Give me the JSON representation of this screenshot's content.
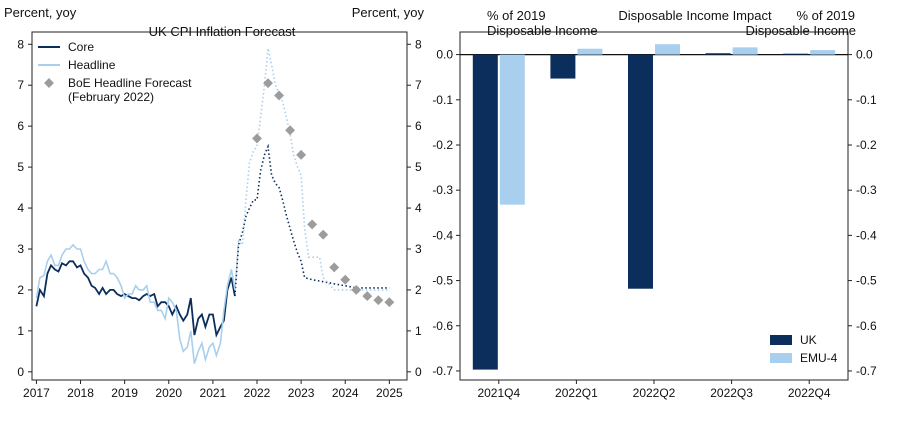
{
  "chart_data": [
    {
      "type": "line",
      "title": "UK CPI Inflation Forecast",
      "ylabel_left": "Percent, yoy",
      "ylabel_right": "Percent, yoy",
      "ylim": [
        -0.2,
        8.3
      ],
      "yticks": [
        "0",
        "1",
        "2",
        "3",
        "4",
        "5",
        "6",
        "7",
        "8"
      ],
      "xlim": [
        2016.9,
        2025.4
      ],
      "xticks": [
        "2017",
        "2018",
        "2019",
        "2020",
        "2021",
        "2022",
        "2023",
        "2024",
        "2025"
      ],
      "legend_position": "top-left",
      "colors": {
        "core": "#0b2e5c",
        "headline": "#a9cfee",
        "forecast": "#9c9c9c"
      },
      "series": [
        {
          "name": "Core",
          "style": "solid",
          "points": [
            [
              2017.0,
              1.6
            ],
            [
              2017.08,
              2.0
            ],
            [
              2017.17,
              1.85
            ],
            [
              2017.25,
              2.4
            ],
            [
              2017.33,
              2.6
            ],
            [
              2017.42,
              2.5
            ],
            [
              2017.5,
              2.45
            ],
            [
              2017.58,
              2.65
            ],
            [
              2017.67,
              2.6
            ],
            [
              2017.75,
              2.7
            ],
            [
              2017.83,
              2.7
            ],
            [
              2017.92,
              2.55
            ],
            [
              2018.0,
              2.6
            ],
            [
              2018.08,
              2.4
            ],
            [
              2018.17,
              2.3
            ],
            [
              2018.25,
              2.1
            ],
            [
              2018.33,
              2.05
            ],
            [
              2018.42,
              1.9
            ],
            [
              2018.5,
              2.05
            ],
            [
              2018.58,
              1.9
            ],
            [
              2018.67,
              2.0
            ],
            [
              2018.75,
              2.0
            ],
            [
              2018.83,
              1.9
            ],
            [
              2018.92,
              1.85
            ],
            [
              2019.0,
              1.9
            ],
            [
              2019.08,
              1.85
            ],
            [
              2019.17,
              1.8
            ],
            [
              2019.25,
              1.8
            ],
            [
              2019.33,
              1.75
            ],
            [
              2019.42,
              1.85
            ],
            [
              2019.5,
              1.9
            ],
            [
              2019.58,
              1.85
            ],
            [
              2019.67,
              1.9
            ],
            [
              2019.75,
              1.6
            ],
            [
              2019.83,
              1.7
            ],
            [
              2019.92,
              1.7
            ],
            [
              2020.0,
              1.6
            ],
            [
              2020.08,
              1.4
            ],
            [
              2020.17,
              1.6
            ],
            [
              2020.25,
              1.4
            ],
            [
              2020.33,
              1.25
            ],
            [
              2020.42,
              1.4
            ],
            [
              2020.5,
              1.8
            ],
            [
              2020.58,
              0.9
            ],
            [
              2020.67,
              1.3
            ],
            [
              2020.75,
              1.4
            ],
            [
              2020.83,
              1.1
            ],
            [
              2020.92,
              1.4
            ],
            [
              2021.0,
              1.4
            ],
            [
              2021.08,
              0.9
            ],
            [
              2021.17,
              1.1
            ],
            [
              2021.25,
              1.25
            ],
            [
              2021.33,
              2.0
            ],
            [
              2021.42,
              2.3
            ],
            [
              2021.5,
              1.85
            ]
          ]
        },
        {
          "name": "Core",
          "style": "dotted",
          "points": [
            [
              2021.5,
              1.85
            ],
            [
              2021.58,
              3.1
            ],
            [
              2021.67,
              3.4
            ],
            [
              2021.75,
              3.8
            ],
            [
              2021.83,
              4.0
            ],
            [
              2021.92,
              4.2
            ],
            [
              2022.0,
              4.2
            ],
            [
              2022.08,
              4.9
            ],
            [
              2022.17,
              5.3
            ],
            [
              2022.25,
              5.5
            ],
            [
              2022.33,
              4.8
            ],
            [
              2022.42,
              4.6
            ],
            [
              2022.5,
              4.5
            ],
            [
              2022.58,
              4.2
            ],
            [
              2022.67,
              3.8
            ],
            [
              2022.75,
              3.5
            ],
            [
              2022.83,
              3.2
            ],
            [
              2022.92,
              2.9
            ],
            [
              2023.0,
              2.7
            ],
            [
              2023.08,
              2.3
            ],
            [
              2023.25,
              2.25
            ],
            [
              2023.5,
              2.2
            ],
            [
              2023.75,
              2.15
            ],
            [
              2024.0,
              2.1
            ],
            [
              2024.25,
              2.05
            ],
            [
              2024.5,
              2.05
            ],
            [
              2024.75,
              2.05
            ],
            [
              2025.0,
              2.05
            ]
          ]
        },
        {
          "name": "Headline",
          "style": "solid",
          "points": [
            [
              2017.0,
              1.8
            ],
            [
              2017.08,
              2.3
            ],
            [
              2017.17,
              2.35
            ],
            [
              2017.25,
              2.7
            ],
            [
              2017.33,
              2.85
            ],
            [
              2017.42,
              2.6
            ],
            [
              2017.5,
              2.6
            ],
            [
              2017.58,
              2.85
            ],
            [
              2017.67,
              3.0
            ],
            [
              2017.75,
              3.0
            ],
            [
              2017.83,
              3.1
            ],
            [
              2017.92,
              3.0
            ],
            [
              2018.0,
              3.0
            ],
            [
              2018.08,
              2.7
            ],
            [
              2018.17,
              2.5
            ],
            [
              2018.25,
              2.4
            ],
            [
              2018.33,
              2.4
            ],
            [
              2018.42,
              2.5
            ],
            [
              2018.5,
              2.5
            ],
            [
              2018.58,
              2.7
            ],
            [
              2018.67,
              2.4
            ],
            [
              2018.75,
              2.4
            ],
            [
              2018.83,
              2.3
            ],
            [
              2018.92,
              2.1
            ],
            [
              2019.0,
              1.8
            ],
            [
              2019.08,
              1.9
            ],
            [
              2019.17,
              1.9
            ],
            [
              2019.25,
              2.1
            ],
            [
              2019.33,
              2.0
            ],
            [
              2019.42,
              2.0
            ],
            [
              2019.5,
              2.1
            ],
            [
              2019.58,
              1.7
            ],
            [
              2019.67,
              1.7
            ],
            [
              2019.75,
              1.5
            ],
            [
              2019.83,
              1.5
            ],
            [
              2019.92,
              1.3
            ],
            [
              2020.0,
              1.8
            ],
            [
              2020.08,
              1.7
            ],
            [
              2020.17,
              1.5
            ],
            [
              2020.25,
              0.8
            ],
            [
              2020.33,
              0.5
            ],
            [
              2020.42,
              0.6
            ],
            [
              2020.5,
              1.0
            ],
            [
              2020.58,
              0.2
            ],
            [
              2020.67,
              0.5
            ],
            [
              2020.75,
              0.7
            ],
            [
              2020.83,
              0.3
            ],
            [
              2020.92,
              0.6
            ],
            [
              2021.0,
              0.7
            ],
            [
              2021.08,
              0.4
            ],
            [
              2021.17,
              0.7
            ],
            [
              2021.25,
              1.5
            ],
            [
              2021.33,
              2.1
            ],
            [
              2021.42,
              2.5
            ],
            [
              2021.5,
              2.0
            ]
          ]
        },
        {
          "name": "Headline",
          "style": "dotted",
          "points": [
            [
              2021.5,
              2.0
            ],
            [
              2021.58,
              3.2
            ],
            [
              2021.67,
              3.1
            ],
            [
              2021.75,
              4.2
            ],
            [
              2021.83,
              5.1
            ],
            [
              2021.92,
              5.4
            ],
            [
              2022.0,
              5.5
            ],
            [
              2022.08,
              6.2
            ],
            [
              2022.17,
              7.0
            ],
            [
              2022.25,
              7.9
            ],
            [
              2022.33,
              7.5
            ],
            [
              2022.42,
              7.0
            ],
            [
              2022.5,
              6.8
            ],
            [
              2022.58,
              6.6
            ],
            [
              2022.67,
              6.2
            ],
            [
              2022.75,
              5.8
            ],
            [
              2022.83,
              5.3
            ],
            [
              2022.92,
              5.0
            ],
            [
              2023.0,
              4.8
            ],
            [
              2023.08,
              3.5
            ],
            [
              2023.17,
              2.8
            ],
            [
              2023.25,
              2.8
            ],
            [
              2023.42,
              2.8
            ],
            [
              2023.5,
              2.3
            ],
            [
              2023.75,
              2.0
            ],
            [
              2024.0,
              2.0
            ],
            [
              2024.25,
              2.0
            ],
            [
              2024.5,
              2.0
            ],
            [
              2024.75,
              2.0
            ],
            [
              2025.0,
              2.0
            ]
          ]
        },
        {
          "name": "BoE Headline Forecast (February 2022)",
          "style": "marker",
          "points": [
            [
              2022.0,
              5.7
            ],
            [
              2022.25,
              7.05
            ],
            [
              2022.5,
              6.75
            ],
            [
              2022.75,
              5.9
            ],
            [
              2023.0,
              5.3
            ],
            [
              2023.25,
              3.6
            ],
            [
              2023.5,
              3.35
            ],
            [
              2023.75,
              2.55
            ],
            [
              2024.0,
              2.25
            ],
            [
              2024.25,
              2.0
            ],
            [
              2024.5,
              1.85
            ],
            [
              2024.75,
              1.75
            ],
            [
              2025.0,
              1.7
            ]
          ]
        }
      ]
    },
    {
      "type": "bar",
      "title": "Disposable Income Impact",
      "ylabel_left": "% of 2019 Disposable Income",
      "ylabel_right": "% of 2019 Disposable Income",
      "ylim": [
        -0.72,
        0.05
      ],
      "yticks": [
        "0.0",
        "-0.1",
        "-0.2",
        "-0.3",
        "-0.4",
        "-0.5",
        "-0.6",
        "-0.7"
      ],
      "categories": [
        "2021Q4",
        "2022Q1",
        "2022Q2",
        "2022Q3",
        "2022Q4"
      ],
      "legend_position": "bottom-right",
      "colors": {
        "UK": "#0b2e5c",
        "EMU-4": "#a9cfee"
      },
      "series": [
        {
          "name": "UK",
          "values": [
            -0.697,
            -0.053,
            -0.518,
            0.003,
            0.002
          ]
        },
        {
          "name": "EMU-4",
          "values": [
            -0.332,
            0.013,
            0.023,
            0.016,
            0.01
          ]
        }
      ]
    }
  ]
}
